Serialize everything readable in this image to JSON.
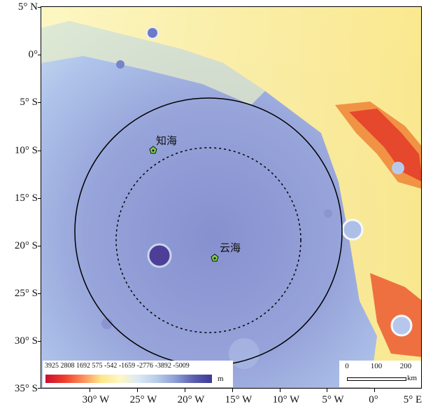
{
  "map": {
    "lat_labels": [
      "5° N",
      "0°",
      "5° S",
      "10° S",
      "15° S",
      "20° S",
      "25° S",
      "30° S",
      "35° S"
    ],
    "lon_labels": [
      "30° W",
      "25° W",
      "20° W",
      "15° W",
      "10° W",
      "5° W",
      "0°",
      "5° E"
    ],
    "sites": [
      {
        "name": "知海"
      },
      {
        "name": "云海"
      }
    ],
    "legend": {
      "values": [
        "3925",
        "2808",
        "1692",
        "575",
        "-542",
        "-1659",
        "-2776",
        "-3892",
        "-5009"
      ],
      "unit": "m"
    },
    "scale_bar": {
      "ticks": [
        "0",
        "100",
        "200"
      ],
      "unit": "km"
    },
    "colors": {
      "lowland": "#9aa8dc",
      "basin_floor": "#8e98d4",
      "highland": "#fdf3a0",
      "peak": "#e8432d",
      "site_marker": "#7ad14a"
    }
  }
}
